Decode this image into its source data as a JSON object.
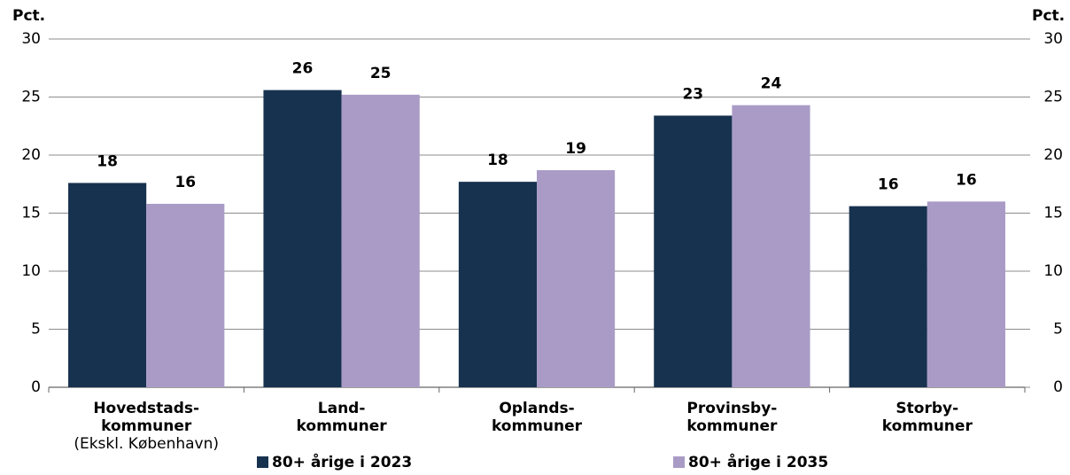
{
  "chart_data": {
    "type": "bar",
    "y_label": "Pct.",
    "y2_label": "Pct.",
    "categories": [
      [
        "Hovedstads-",
        "kommuner",
        "(Ekskl. København)"
      ],
      [
        "Land-",
        "kommuner"
      ],
      [
        "Oplands-",
        "kommuner"
      ],
      [
        "Provinsby-",
        "kommuner"
      ],
      [
        "Storby-",
        "kommuner"
      ]
    ],
    "series": [
      {
        "name": "80+ årige i 2023",
        "color": "#17324f",
        "values": [
          17.6,
          25.6,
          17.7,
          23.4,
          15.6
        ],
        "value_labels": [
          "18",
          "26",
          "18",
          "23",
          "16"
        ]
      },
      {
        "name": "80+ årige i 2035",
        "color": "#a99bc6",
        "values": [
          15.8,
          25.2,
          18.7,
          24.3,
          16.0
        ],
        "value_labels": [
          "16",
          "25",
          "19",
          "24",
          "16"
        ]
      }
    ],
    "ylim": [
      0,
      30
    ],
    "yticks": [
      0,
      5,
      10,
      15,
      20,
      25,
      30
    ],
    "y2lim": [
      0,
      30
    ],
    "y2ticks": [
      0,
      5,
      10,
      15,
      20,
      25,
      30
    ],
    "grid": true
  }
}
